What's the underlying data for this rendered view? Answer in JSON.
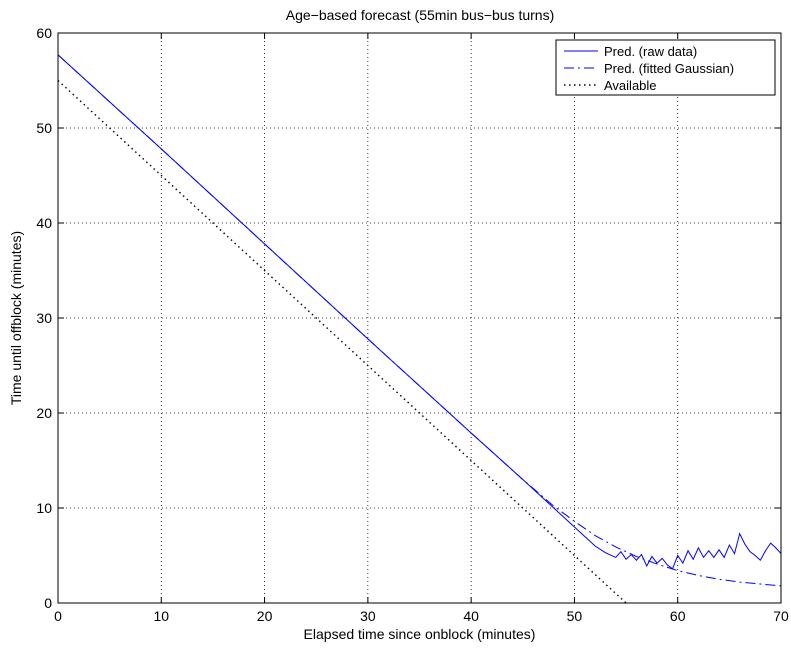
{
  "chart_data": {
    "type": "line",
    "title": "Age−based forecast (55min bus−bus turns)",
    "xlabel": "Elapsed time since onblock (minutes)",
    "ylabel": "Time until offblock (minutes)",
    "xlim": [
      0,
      70
    ],
    "ylim": [
      0,
      60
    ],
    "xticks": [
      0,
      10,
      20,
      30,
      40,
      50,
      60,
      70
    ],
    "yticks": [
      0,
      10,
      20,
      30,
      40,
      50,
      60
    ],
    "grid": true,
    "legend_position": "top-right",
    "series": [
      {
        "name": "Pred. (raw data)",
        "color": "#0000ff",
        "line_style": "solid",
        "points": [
          [
            0,
            57.7
          ],
          [
            10,
            47.8
          ],
          [
            20,
            37.8
          ],
          [
            30,
            27.8
          ],
          [
            40,
            17.9
          ],
          [
            45,
            13.0
          ],
          [
            48,
            10.0
          ],
          [
            50,
            8.0
          ],
          [
            51,
            7.0
          ],
          [
            52,
            6.0
          ],
          [
            53,
            5.3
          ],
          [
            54,
            4.8
          ],
          [
            54.5,
            5.4
          ],
          [
            55,
            4.6
          ],
          [
            55.5,
            5.1
          ],
          [
            56,
            4.5
          ],
          [
            56.5,
            5.1
          ],
          [
            57,
            3.9
          ],
          [
            57.5,
            4.9
          ],
          [
            58,
            4.2
          ],
          [
            58.5,
            4.7
          ],
          [
            59,
            4.0
          ],
          [
            59.5,
            3.6
          ],
          [
            60,
            5.0
          ],
          [
            60.5,
            4.2
          ],
          [
            61,
            5.5
          ],
          [
            61.5,
            4.6
          ],
          [
            62,
            5.8
          ],
          [
            62.5,
            4.8
          ],
          [
            63,
            5.5
          ],
          [
            63.5,
            4.8
          ],
          [
            64,
            5.6
          ],
          [
            64.5,
            4.8
          ],
          [
            65,
            6.1
          ],
          [
            65.5,
            5.2
          ],
          [
            66,
            7.3
          ],
          [
            66.5,
            6.2
          ],
          [
            67,
            5.4
          ],
          [
            67.5,
            5.0
          ],
          [
            68,
            4.5
          ],
          [
            68.5,
            5.5
          ],
          [
            69,
            6.3
          ],
          [
            69.5,
            5.8
          ],
          [
            70,
            5.2
          ]
        ]
      },
      {
        "name": "Pred. (fitted Gaussian)",
        "color": "#0000ff",
        "line_style": "dashdot",
        "points": [
          [
            0,
            57.7
          ],
          [
            10,
            47.8
          ],
          [
            20,
            37.8
          ],
          [
            30,
            27.8
          ],
          [
            40,
            17.9
          ],
          [
            45,
            13.0
          ],
          [
            48,
            10.2
          ],
          [
            50,
            8.6
          ],
          [
            52,
            7.1
          ],
          [
            54,
            5.9
          ],
          [
            56,
            4.9
          ],
          [
            58,
            4.1
          ],
          [
            60,
            3.4
          ],
          [
            62,
            2.9
          ],
          [
            64,
            2.5
          ],
          [
            66,
            2.2
          ],
          [
            68,
            2.0
          ],
          [
            70,
            1.8
          ]
        ]
      },
      {
        "name": "Available",
        "color": "#000000",
        "line_style": "dotted",
        "points": [
          [
            0,
            55
          ],
          [
            55,
            0
          ]
        ]
      }
    ]
  }
}
